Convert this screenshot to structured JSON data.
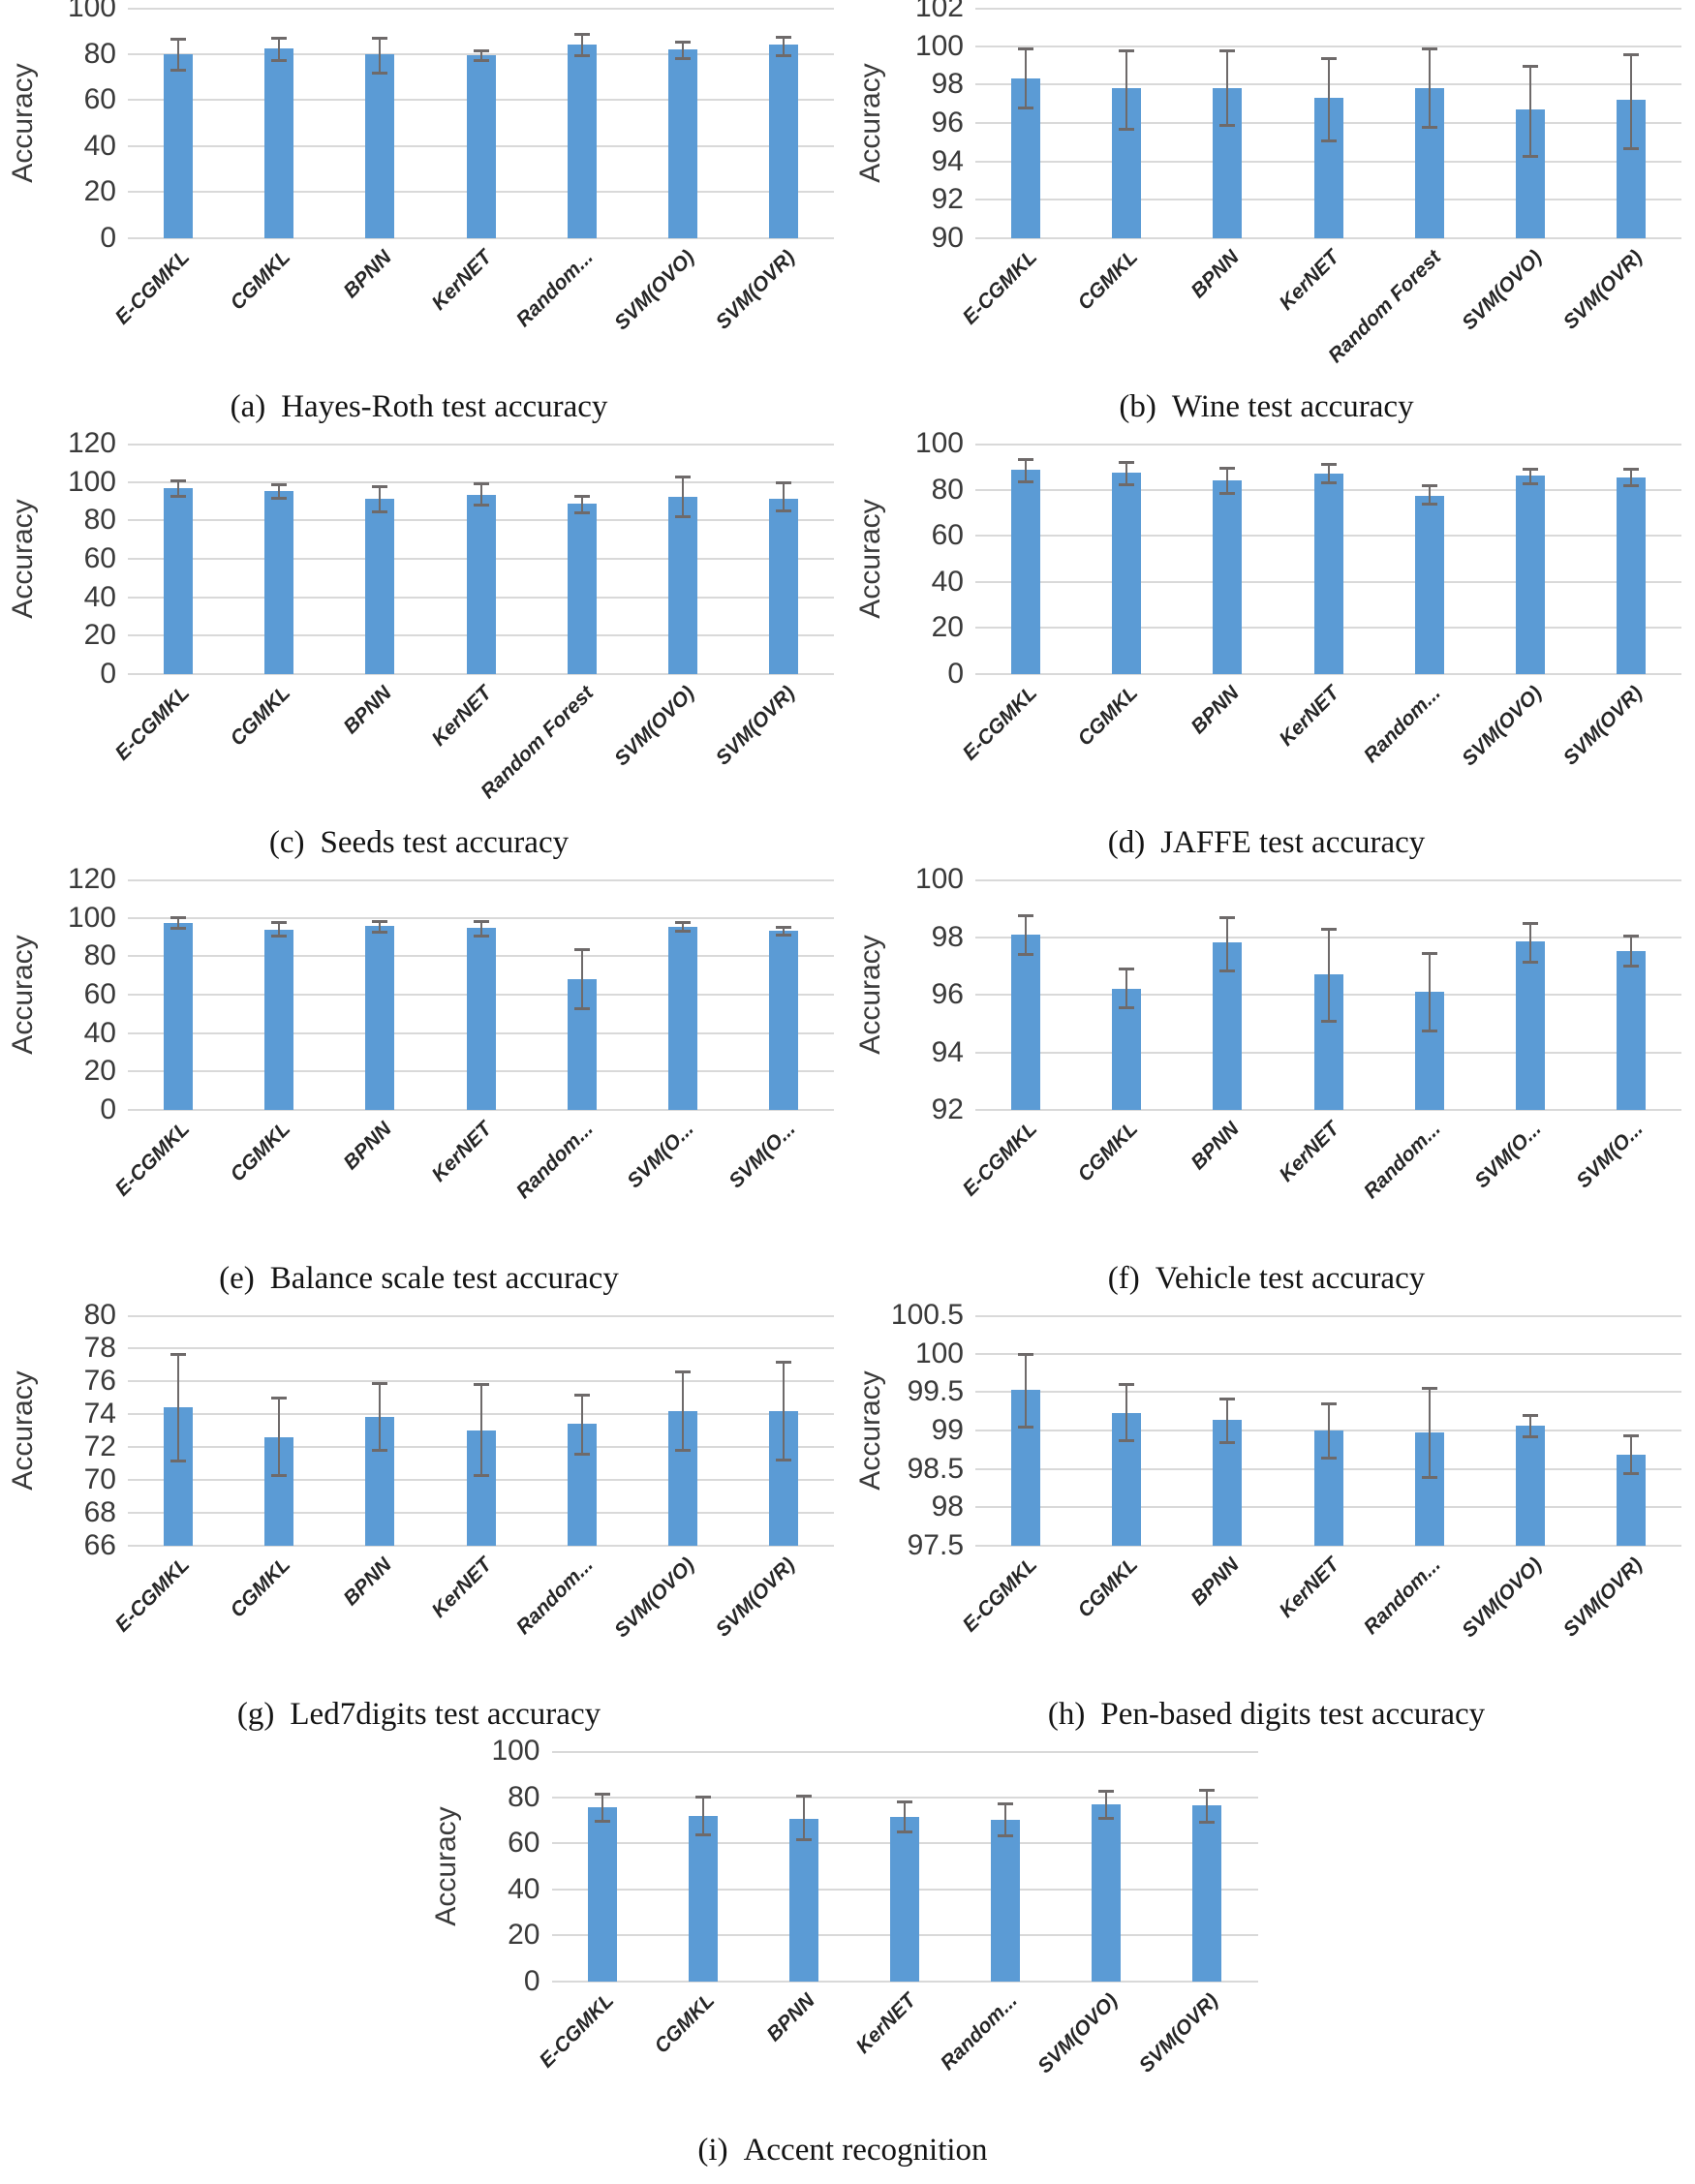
{
  "figure": {
    "accent_color": "#5b9bd5",
    "error_bar_color": "#6e6a6a",
    "gridline_color": "#d9d9d9",
    "axis_text_color": "#3a3a3a",
    "caption_color": "#141414"
  },
  "chart_data": [
    {
      "type": "bar",
      "caption_label": "(a)",
      "caption": "Hayes-Roth test accuracy",
      "ylabel": "Accuracy",
      "ylim": [
        0,
        100
      ],
      "ystep": 20,
      "grid": true,
      "legend": "none",
      "categories": [
        "E-CGMKL",
        "CGMKL",
        "BPNN",
        "KerNET",
        "Random...",
        "SVM(OVO)",
        "SVM(OVR)"
      ],
      "values": [
        80,
        82.5,
        80,
        79.5,
        84,
        82,
        84
      ],
      "error_low": [
        73,
        77.5,
        72,
        77.5,
        79.5,
        78,
        79.5
      ],
      "error_high": [
        86.5,
        87,
        87,
        81.5,
        88.5,
        85.5,
        87.5
      ]
    },
    {
      "type": "bar",
      "caption_label": "(b)",
      "caption": "Wine test accuracy",
      "ylabel": "Accuracy",
      "ylim": [
        90,
        102
      ],
      "ystep": 2,
      "grid": true,
      "legend": "none",
      "categories": [
        "E-CGMKL",
        "CGMKL",
        "BPNN",
        "KerNET",
        "Random Forest",
        "SVM(OVO)",
        "SVM(OVR)"
      ],
      "values": [
        98.3,
        97.8,
        97.8,
        97.3,
        97.8,
        96.7,
        97.2
      ],
      "error_low": [
        96.8,
        95.7,
        95.9,
        95.1,
        95.8,
        94.3,
        94.7
      ],
      "error_high": [
        99.9,
        99.8,
        99.8,
        99.4,
        99.9,
        99.0,
        99.6
      ]
    },
    {
      "type": "bar",
      "caption_label": "(c)",
      "caption": "Seeds test accuracy",
      "ylabel": "Accuracy",
      "ylim": [
        0,
        120
      ],
      "ystep": 20,
      "grid": true,
      "legend": "none",
      "categories": [
        "E-CGMKL",
        "CGMKL",
        "BPNN",
        "KerNET",
        "Random Forest",
        "SVM(OVO)",
        "SVM(OVR)"
      ],
      "values": [
        97,
        95.5,
        91.3,
        93.5,
        88.5,
        92.3,
        91.5
      ],
      "error_low": [
        93,
        92,
        84.5,
        88,
        84,
        82,
        85
      ],
      "error_high": [
        101,
        99,
        98,
        99.5,
        93,
        103,
        100
      ]
    },
    {
      "type": "bar",
      "caption_label": "(d)",
      "caption": "JAFFE test accuracy",
      "ylabel": "Accuracy",
      "ylim": [
        0,
        100
      ],
      "ystep": 20,
      "grid": true,
      "legend": "none",
      "categories": [
        "E-CGMKL",
        "CGMKL",
        "BPNN",
        "KerNET",
        "Random...",
        "SVM(OVO)",
        "SVM(OVR)"
      ],
      "values": [
        88.5,
        87.3,
        84,
        87,
        77.5,
        86,
        85.3
      ],
      "error_low": [
        83.5,
        82.4,
        78.4,
        83,
        73.8,
        82.7,
        82
      ],
      "error_high": [
        93.4,
        91.9,
        89.6,
        91,
        82,
        89.2,
        88.9
      ]
    },
    {
      "type": "bar",
      "caption_label": "(e)",
      "caption": "Balance scale test accuracy",
      "ylabel": "Accuracy",
      "ylim": [
        0,
        120
      ],
      "ystep": 20,
      "grid": true,
      "legend": "none",
      "categories": [
        "E-CGMKL",
        "CGMKL",
        "BPNN",
        "KerNET",
        "Random...",
        "SVM(O...",
        "SVM(O..."
      ],
      "values": [
        97.5,
        94,
        95.7,
        94.7,
        68,
        95.4,
        93.3
      ],
      "error_low": [
        95,
        91,
        93,
        91,
        53,
        93.2,
        91.4
      ],
      "error_high": [
        100.2,
        98,
        98.2,
        98.4,
        83.5,
        97.6,
        95.4
      ]
    },
    {
      "type": "bar",
      "caption_label": "(f)",
      "caption": "Vehicle test accuracy",
      "ylabel": "Accuracy",
      "ylim": [
        92,
        100
      ],
      "ystep": 2,
      "grid": true,
      "legend": "none",
      "categories": [
        "E-CGMKL",
        "CGMKL",
        "BPNN",
        "KerNET",
        "Random...",
        "SVM(O...",
        "SVM(O..."
      ],
      "values": [
        98.1,
        96.2,
        97.8,
        96.7,
        96.1,
        97.85,
        97.5
      ],
      "error_low": [
        97.4,
        95.55,
        96.85,
        95.1,
        94.75,
        97.15,
        97.0
      ],
      "error_high": [
        98.75,
        96.9,
        98.7,
        98.3,
        97.45,
        98.5,
        98.05
      ]
    },
    {
      "type": "bar",
      "caption_label": "(g)",
      "caption": "Led7digits test accuracy",
      "ylabel": "Accuracy",
      "ylim": [
        66,
        80
      ],
      "ystep": 2,
      "grid": true,
      "legend": "none",
      "categories": [
        "E-CGMKL",
        "CGMKL",
        "BPNN",
        "KerNET",
        "Random...",
        "SVM(OVO)",
        "SVM(OVR)"
      ],
      "values": [
        74.4,
        72.6,
        73.8,
        73.0,
        73.4,
        74.2,
        74.2
      ],
      "error_low": [
        71.15,
        70.3,
        71.8,
        70.3,
        71.6,
        71.85,
        71.25
      ],
      "error_high": [
        77.65,
        75.0,
        75.9,
        75.85,
        75.2,
        76.6,
        77.15
      ]
    },
    {
      "type": "bar",
      "caption_label": "(h)",
      "caption": "Pen-based digits test accuracy",
      "ylabel": "Accuracy",
      "ylim": [
        97.5,
        100.5
      ],
      "ystep": 0.5,
      "grid": true,
      "legend": "none",
      "categories": [
        "E-CGMKL",
        "CGMKL",
        "BPNN",
        "KerNET",
        "Random...",
        "SVM(OVO)",
        "SVM(OVR)"
      ],
      "values": [
        99.53,
        99.23,
        99.14,
        99.0,
        98.97,
        99.06,
        98.69
      ],
      "error_low": [
        99.05,
        98.87,
        98.85,
        98.65,
        98.4,
        98.93,
        98.44
      ],
      "error_high": [
        100.0,
        99.6,
        99.42,
        99.35,
        99.55,
        99.2,
        98.94
      ]
    },
    {
      "type": "bar",
      "caption_label": "(i)",
      "caption": "Accent recognition",
      "ylabel": "Accuracy",
      "ylim": [
        0,
        100
      ],
      "ystep": 20,
      "grid": true,
      "legend": "none",
      "categories": [
        "E-CGMKL",
        "CGMKL",
        "BPNN",
        "KerNET",
        "Random...",
        "SVM(OVO)",
        "SVM(OVR)"
      ],
      "values": [
        75.8,
        72,
        70.6,
        71.4,
        70.3,
        76.7,
        76.3
      ],
      "error_low": [
        69.9,
        63.9,
        61.6,
        65.2,
        63.4,
        71.1,
        69.5
      ],
      "error_high": [
        81.7,
        80.2,
        80.6,
        78,
        77.4,
        82.6,
        83
      ]
    }
  ]
}
